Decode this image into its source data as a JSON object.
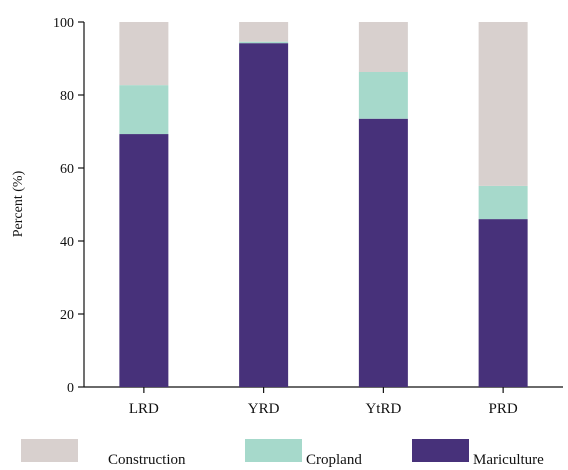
{
  "chart_data": {
    "type": "bar",
    "stacked": true,
    "categories": [
      "LRD",
      "YRD",
      "YtRD",
      "PRD"
    ],
    "series": [
      {
        "name": "Mariculture",
        "color": "#47317a",
        "values": [
          69.3,
          94.2,
          73.5,
          46.0
        ]
      },
      {
        "name": "Cropland",
        "color": "#a6d9cb",
        "values": [
          13.4,
          0.4,
          12.8,
          9.1
        ]
      },
      {
        "name": "Construction",
        "color": "#d8d0ce",
        "values": [
          17.3,
          5.4,
          13.7,
          44.9
        ]
      }
    ],
    "legend_order": [
      "Construction",
      "Cropland",
      "Mariculture"
    ],
    "legend_position": "bottom",
    "title": "",
    "xlabel": "",
    "ylabel": "Percent (%)",
    "ylim": [
      0,
      100
    ],
    "yticks": [
      0,
      20,
      40,
      60,
      80,
      100
    ],
    "grid": false
  }
}
